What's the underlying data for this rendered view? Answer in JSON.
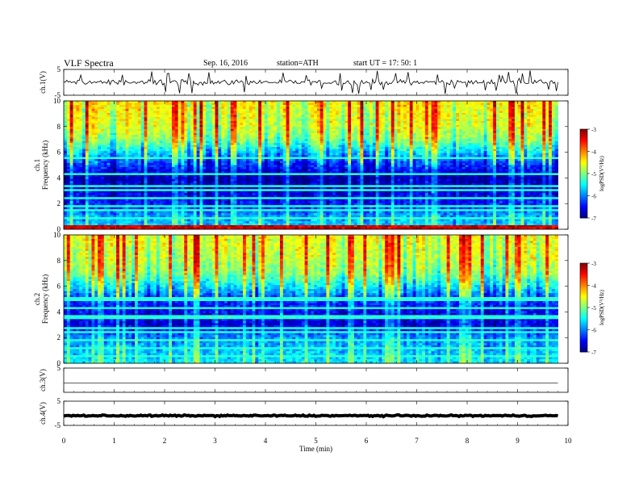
{
  "header": {
    "title": "VLF  Spectra",
    "date": "Sep. 16, 2016",
    "station": "station=ATH",
    "start": "start  UT =   17: 50: 1"
  },
  "chart_data": {
    "type": "spectrogram",
    "xlabel": "Time  (min)",
    "xlim": [
      0,
      10
    ],
    "xticks": [
      "0",
      "1",
      "2",
      "3",
      "4",
      "5",
      "6",
      "7",
      "8",
      "9",
      "10"
    ],
    "data_end_min": 9.8,
    "panels": [
      {
        "id": "ch1-waveform",
        "type": "line",
        "ylabel": "ch.1(V)",
        "ylim": [
          -5,
          5
        ],
        "yticks": [
          "5",
          "-5"
        ],
        "baseline": 0.05,
        "noise_amp": 1.1,
        "spikes": true
      },
      {
        "id": "ch1-spectrogram",
        "type": "heatmap",
        "ylabel_top": "ch.1",
        "ylabel": "Frequency  (kHz)",
        "ylim": [
          0,
          10
        ],
        "yticks": [
          "0",
          "2",
          "4",
          "6",
          "8",
          "10"
        ],
        "colorbar": {
          "label": "logPSD(V²/Hz)",
          "ticks": [
            "-3",
            "-4",
            "-5",
            "-6",
            "-7"
          ],
          "range": [
            -7,
            -3
          ]
        },
        "bands_khz": [
          0.3,
          0.9,
          1.5,
          1.8,
          2.4,
          3.0,
          3.3,
          4.3,
          5.6
        ],
        "profile": [
          [
            0,
            -5.6
          ],
          [
            1,
            -5.8
          ],
          [
            2,
            -6.4
          ],
          [
            3,
            -6.6
          ],
          [
            4,
            -6.8
          ],
          [
            5,
            -6.3
          ],
          [
            6,
            -5.6
          ],
          [
            7,
            -4.9
          ],
          [
            8,
            -4.6
          ],
          [
            9,
            -4.5
          ],
          [
            10,
            -4.4
          ]
        ]
      },
      {
        "id": "ch2-spectrogram",
        "type": "heatmap",
        "ylabel_top": "ch.2",
        "ylabel": "Frequency  (kHz)",
        "ylim": [
          0,
          10
        ],
        "yticks": [
          "0",
          "2",
          "4",
          "6",
          "8",
          "10"
        ],
        "colorbar": {
          "label": "logPSD(V²/Hz)",
          "ticks": [
            "-3",
            "-4",
            "-5",
            "-6",
            "-7"
          ],
          "range": [
            -7,
            -3
          ]
        },
        "bands_khz": [
          0.6,
          1.2,
          1.8,
          2.4,
          2.8,
          3.6,
          4.3,
          5.0
        ],
        "profile": [
          [
            0,
            -5.5
          ],
          [
            1,
            -5.7
          ],
          [
            2,
            -5.9
          ],
          [
            3,
            -6.6
          ],
          [
            4,
            -6.5
          ],
          [
            5,
            -6.2
          ],
          [
            6,
            -5.5
          ],
          [
            7,
            -4.9
          ],
          [
            8,
            -4.7
          ],
          [
            9,
            -4.6
          ],
          [
            10,
            -4.5
          ]
        ]
      },
      {
        "id": "ch3-waveform",
        "type": "line",
        "ylabel": "ch.3(V)",
        "ylim": [
          -5,
          5
        ],
        "yticks": [
          "5"
        ],
        "baseline": -1.2,
        "noise_amp": 0.02,
        "spikes": false
      },
      {
        "id": "ch4-waveform",
        "type": "line",
        "ylabel": "ch.4(V)",
        "ylim": [
          -5,
          5
        ],
        "yticks": [
          "5",
          "-5"
        ],
        "baseline": -1.0,
        "noise_amp": 0.3,
        "spikes": false,
        "thick": true
      }
    ]
  }
}
